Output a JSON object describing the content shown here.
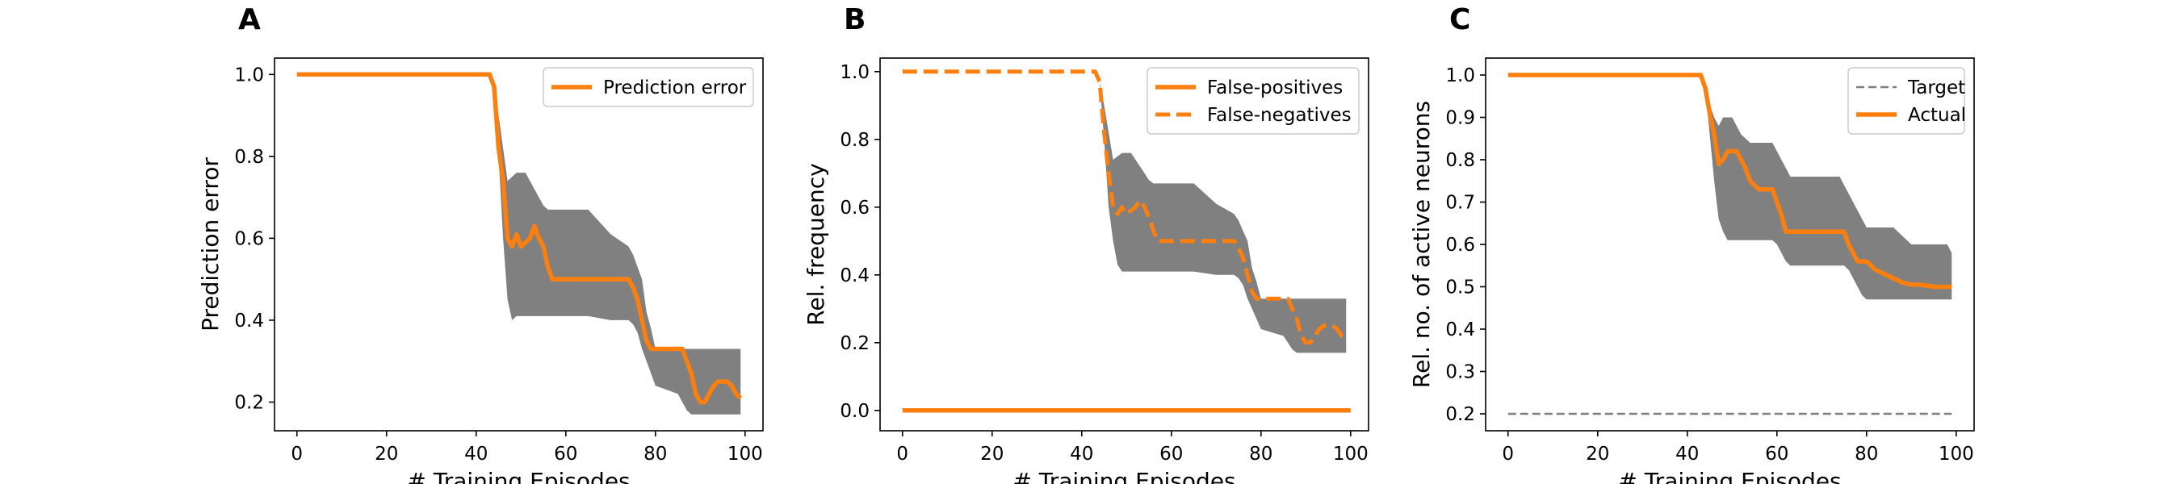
{
  "chart_data": [
    {
      "panel": "A",
      "type": "line",
      "xlabel": "# Training Episodes",
      "ylabel": "Prediction error",
      "xlim": [
        -5,
        104
      ],
      "ylim": [
        0.13,
        1.04
      ],
      "xticks": [
        "0",
        "20",
        "40",
        "60",
        "80",
        "100"
      ],
      "yticks": [
        "0.2",
        "0.4",
        "0.6",
        "0.8",
        "1.0"
      ],
      "legend": "top-right",
      "series": [
        {
          "name": "Prediction error",
          "color": "#ff7f0e",
          "style": "solid",
          "x": [
            0,
            43,
            44,
            45,
            46,
            47,
            48,
            49,
            50,
            51,
            52,
            53,
            54,
            55,
            56,
            57,
            58,
            59,
            60,
            65,
            70,
            74,
            75,
            76,
            77,
            78,
            79,
            80,
            85,
            86,
            87,
            88,
            89,
            90,
            91,
            92,
            93,
            94,
            95,
            96,
            97,
            98,
            99
          ],
          "y": [
            1.0,
            1.0,
            0.97,
            0.82,
            0.74,
            0.6,
            0.58,
            0.61,
            0.58,
            0.59,
            0.6,
            0.63,
            0.6,
            0.58,
            0.53,
            0.5,
            0.5,
            0.5,
            0.5,
            0.5,
            0.5,
            0.5,
            0.48,
            0.45,
            0.4,
            0.35,
            0.33,
            0.33,
            0.33,
            0.33,
            0.3,
            0.27,
            0.22,
            0.2,
            0.2,
            0.22,
            0.24,
            0.25,
            0.25,
            0.25,
            0.24,
            0.22,
            0.21
          ],
          "band_upper": [
            1.0,
            1.0,
            0.97,
            0.9,
            0.82,
            0.74,
            0.75,
            0.76,
            0.76,
            0.76,
            0.74,
            0.72,
            0.7,
            0.68,
            0.67,
            0.67,
            0.67,
            0.67,
            0.67,
            0.67,
            0.61,
            0.58,
            0.56,
            0.53,
            0.5,
            0.42,
            0.38,
            0.33,
            0.33,
            0.33,
            0.33,
            0.33,
            0.33,
            0.33,
            0.33,
            0.33,
            0.33,
            0.33,
            0.33,
            0.33,
            0.33,
            0.33,
            0.33
          ],
          "band_lower": [
            1.0,
            1.0,
            0.97,
            0.8,
            0.6,
            0.45,
            0.4,
            0.41,
            0.41,
            0.41,
            0.41,
            0.41,
            0.41,
            0.41,
            0.41,
            0.41,
            0.41,
            0.41,
            0.41,
            0.41,
            0.4,
            0.4,
            0.39,
            0.37,
            0.33,
            0.3,
            0.27,
            0.24,
            0.22,
            0.2,
            0.18,
            0.17,
            0.17,
            0.17,
            0.17,
            0.17,
            0.17,
            0.17,
            0.17,
            0.17,
            0.17,
            0.17,
            0.17
          ]
        }
      ]
    },
    {
      "panel": "B",
      "type": "line",
      "xlabel": "# Training Episodes",
      "ylabel": "Rel. frequency",
      "xlim": [
        -5,
        104
      ],
      "ylim": [
        -0.06,
        1.04
      ],
      "xticks": [
        "0",
        "20",
        "40",
        "60",
        "80",
        "100"
      ],
      "yticks": [
        "0.0",
        "0.2",
        "0.4",
        "0.6",
        "0.8",
        "1.0"
      ],
      "legend": "top-right",
      "series": [
        {
          "name": "False-positives",
          "color": "#ff7f0e",
          "style": "solid",
          "x": [
            0,
            100
          ],
          "y": [
            0.0,
            0.0
          ]
        },
        {
          "name": "False-negatives",
          "color": "#ff7f0e",
          "style": "dashed",
          "x": [
            0,
            43,
            44,
            45,
            46,
            47,
            48,
            49,
            50,
            51,
            52,
            53,
            54,
            55,
            56,
            57,
            58,
            59,
            60,
            65,
            70,
            74,
            75,
            76,
            77,
            78,
            79,
            80,
            85,
            86,
            87,
            88,
            89,
            90,
            91,
            92,
            93,
            94,
            95,
            96,
            97,
            98,
            99
          ],
          "y": [
            1.0,
            1.0,
            0.97,
            0.82,
            0.7,
            0.6,
            0.58,
            0.6,
            0.58,
            0.59,
            0.6,
            0.62,
            0.6,
            0.57,
            0.53,
            0.5,
            0.5,
            0.5,
            0.5,
            0.5,
            0.5,
            0.5,
            0.48,
            0.45,
            0.4,
            0.35,
            0.33,
            0.33,
            0.33,
            0.33,
            0.3,
            0.27,
            0.22,
            0.2,
            0.2,
            0.22,
            0.24,
            0.25,
            0.25,
            0.25,
            0.24,
            0.22,
            0.21
          ],
          "band_upper": [
            1.0,
            1.0,
            0.97,
            0.9,
            0.82,
            0.74,
            0.75,
            0.76,
            0.76,
            0.76,
            0.74,
            0.72,
            0.7,
            0.68,
            0.67,
            0.67,
            0.67,
            0.67,
            0.67,
            0.67,
            0.61,
            0.58,
            0.56,
            0.53,
            0.5,
            0.42,
            0.38,
            0.33,
            0.33,
            0.33,
            0.33,
            0.33,
            0.33,
            0.33,
            0.33,
            0.33,
            0.33,
            0.33,
            0.33,
            0.33,
            0.33,
            0.33,
            0.33
          ],
          "band_lower": [
            1.0,
            1.0,
            0.97,
            0.8,
            0.6,
            0.5,
            0.43,
            0.41,
            0.41,
            0.41,
            0.41,
            0.41,
            0.41,
            0.41,
            0.41,
            0.41,
            0.41,
            0.41,
            0.41,
            0.41,
            0.4,
            0.4,
            0.39,
            0.37,
            0.33,
            0.3,
            0.27,
            0.24,
            0.22,
            0.2,
            0.18,
            0.17,
            0.17,
            0.17,
            0.17,
            0.17,
            0.17,
            0.17,
            0.17,
            0.17,
            0.17,
            0.17,
            0.17
          ]
        }
      ]
    },
    {
      "panel": "C",
      "type": "line",
      "xlabel": "# Training Episodes",
      "ylabel": "Rel. no. of active neurons",
      "xlim": [
        -5,
        104
      ],
      "ylim": [
        0.16,
        1.04
      ],
      "xticks": [
        "0",
        "20",
        "40",
        "60",
        "80",
        "100"
      ],
      "yticks": [
        "0.2",
        "0.3",
        "0.4",
        "0.5",
        "0.6",
        "0.7",
        "0.8",
        "0.9",
        "1.0"
      ],
      "legend": "top-right",
      "series": [
        {
          "name": "Target",
          "color": "#7f7f7f",
          "style": "dashed-thin",
          "x": [
            0,
            99
          ],
          "y": [
            0.2,
            0.2
          ]
        },
        {
          "name": "Actual",
          "color": "#ff7f0e",
          "style": "solid",
          "x": [
            0,
            43,
            44,
            45,
            46,
            47,
            48,
            49,
            50,
            51,
            52,
            53,
            54,
            55,
            56,
            58,
            59,
            60,
            61,
            62,
            63,
            70,
            72,
            74,
            75,
            76,
            77,
            78,
            79,
            80,
            82,
            84,
            86,
            88,
            90,
            92,
            95,
            98,
            99
          ],
          "y": [
            1.0,
            1.0,
            0.97,
            0.91,
            0.86,
            0.79,
            0.8,
            0.82,
            0.82,
            0.82,
            0.8,
            0.78,
            0.75,
            0.74,
            0.73,
            0.73,
            0.73,
            0.7,
            0.67,
            0.63,
            0.63,
            0.63,
            0.63,
            0.63,
            0.63,
            0.6,
            0.58,
            0.56,
            0.56,
            0.56,
            0.54,
            0.53,
            0.52,
            0.51,
            0.505,
            0.505,
            0.5,
            0.5,
            0.5
          ],
          "band_upper": [
            1.0,
            1.0,
            0.97,
            0.93,
            0.9,
            0.88,
            0.9,
            0.9,
            0.9,
            0.88,
            0.86,
            0.85,
            0.84,
            0.84,
            0.84,
            0.84,
            0.84,
            0.82,
            0.8,
            0.78,
            0.76,
            0.76,
            0.76,
            0.76,
            0.74,
            0.72,
            0.7,
            0.68,
            0.66,
            0.64,
            0.64,
            0.64,
            0.64,
            0.62,
            0.6,
            0.6,
            0.6,
            0.6,
            0.58
          ],
          "band_lower": [
            1.0,
            1.0,
            0.97,
            0.86,
            0.75,
            0.66,
            0.63,
            0.61,
            0.61,
            0.61,
            0.61,
            0.61,
            0.61,
            0.61,
            0.61,
            0.61,
            0.61,
            0.6,
            0.58,
            0.56,
            0.55,
            0.55,
            0.55,
            0.55,
            0.55,
            0.54,
            0.52,
            0.5,
            0.48,
            0.47,
            0.47,
            0.47,
            0.47,
            0.47,
            0.47,
            0.47,
            0.47,
            0.47,
            0.47
          ]
        }
      ]
    }
  ]
}
